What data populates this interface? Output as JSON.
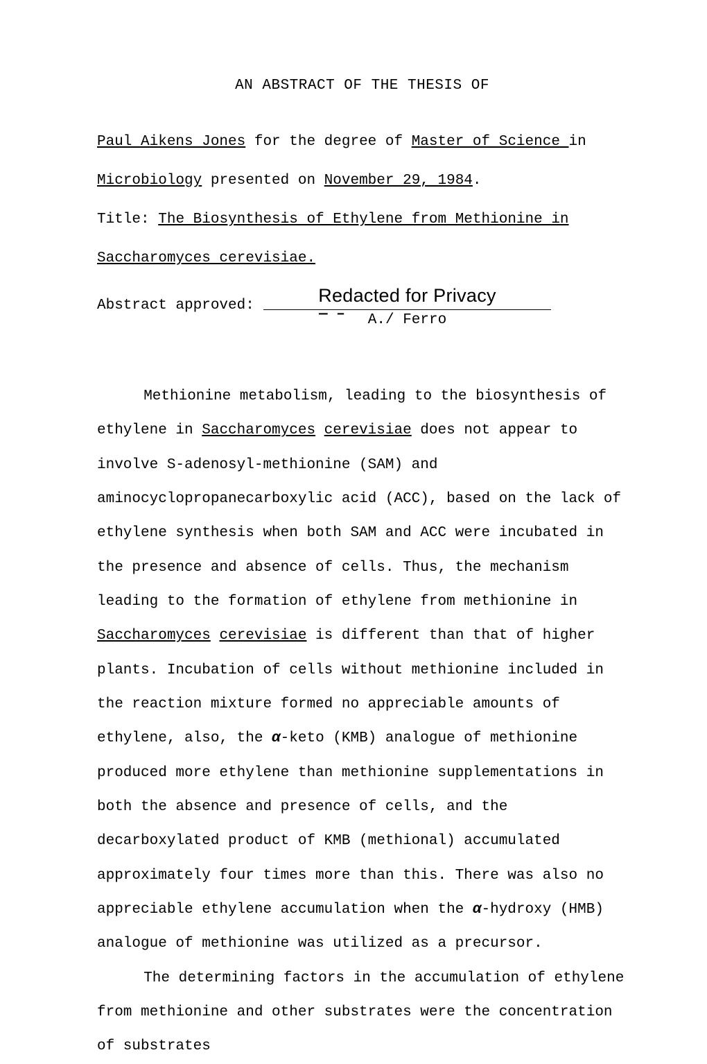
{
  "sectionTitle": "AN ABSTRACT OF THE THESIS OF",
  "front": {
    "author": "Paul Aikens Jones",
    "degreePhrase1": "  for the degree of  ",
    "degree": " Master of Science ",
    "inWord": "in",
    "dept": "Microbiology",
    "presentedOn": " presented on ",
    "date": "November 29, 1984",
    "period1": ".",
    "titleLabel": "Title:",
    "titleSpacer": "   ",
    "titleLine1": "The Biosynthesis of Ethylene from Methionine in",
    "titleLine2": "Saccharomyces cerevisiae.",
    "redacted": "Redacted for Privacy",
    "approvedLabel": "Abstract approved:",
    "sigMark": "— –",
    "sigInitials": "A./ ",
    "sigName": "Ferro"
  },
  "body": {
    "p1_a": "Methionine metabolism, leading to the biosynthesis of ethylene in ",
    "p1_u1": "Saccharomyces",
    "p1_b": " ",
    "p1_u2": "cerevisiae",
    "p1_c": " does not appear to involve S-adenosyl-methionine (SAM) and aminocyclopropanecarboxylic acid (ACC), based on the lack of ethylene synthesis when both SAM and ACC were incubated in the presence and absence of cells.  Thus, the mechanism leading to the formation of ethylene from methionine in ",
    "p1_u3": "Saccharomyces",
    "p1_d": " ",
    "p1_u4": "cerevisiae",
    "p1_e": " is different than that of higher plants.  Incubation of cells without methionine included in the reaction mixture formed no appreciable amounts of ethylene, also, the ",
    "alpha1": "α",
    "p1_f": "-keto (KMB) analogue of methionine produced more ethylene than methionine supplementations in both the absence and presence of cells, and the decarboxylated product of KMB (methional) accumulated approximately four times more than this.  There was also no appreciable ethylene accumulation when the ",
    "alpha2": "α",
    "p1_g": "-hydroxy (HMB) analogue of methionine was utilized as a precursor.",
    "p2": "The determining factors in the accumulation of ethylene from methionine and other substrates were the concentration of substrates"
  },
  "style": {
    "pageWidth": 1020,
    "pageHeight": 1462,
    "bodyFontSizePx": 21,
    "redactedFontSizePx": 27,
    "lineHeightBody": 2.35,
    "textColor": "#000000",
    "background": "#ffffff"
  }
}
